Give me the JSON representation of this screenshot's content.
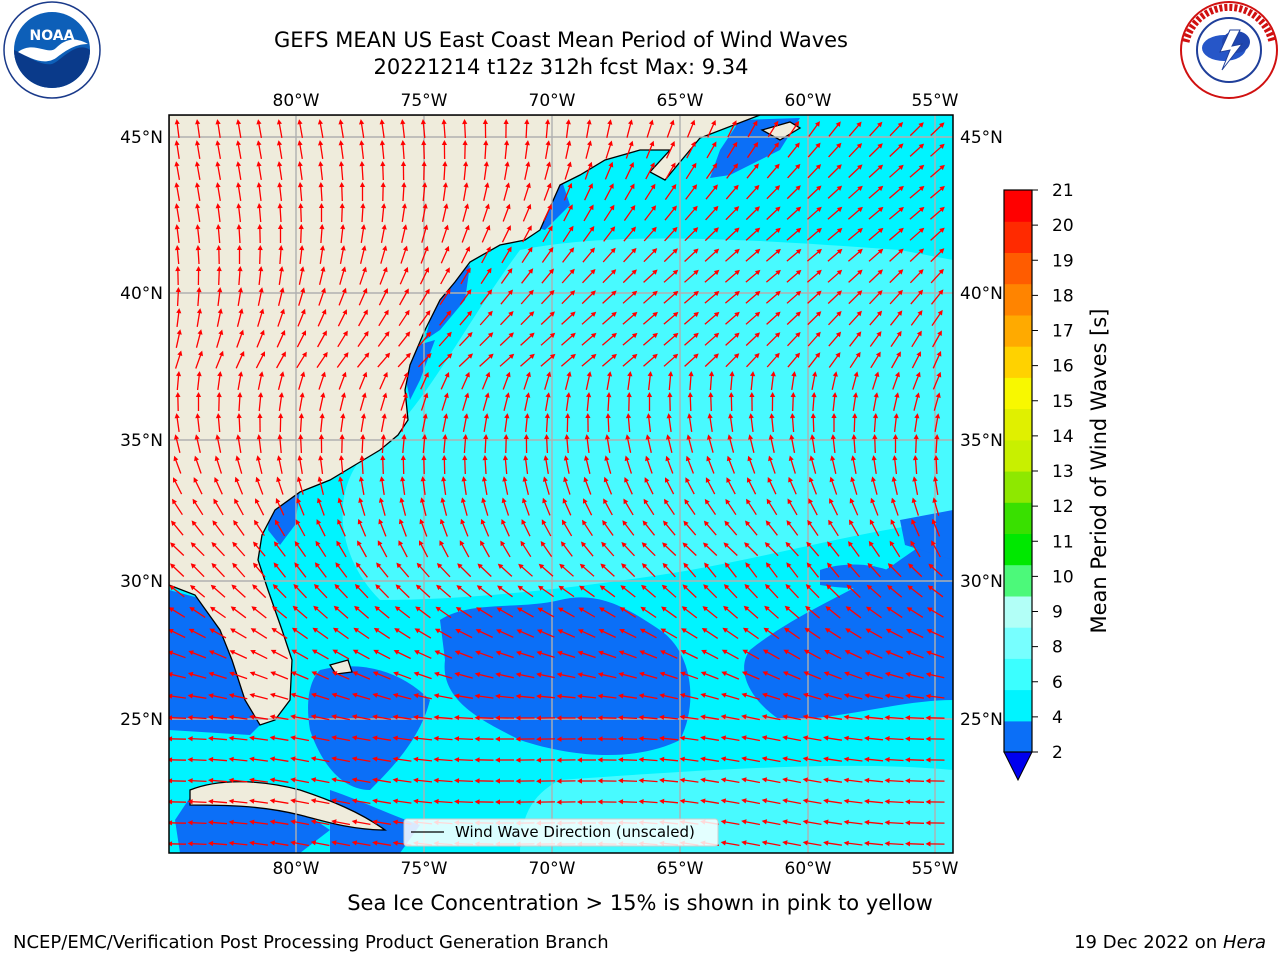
{
  "header": {
    "title_line1": "GEFS MEAN US East Coast Mean Period of Wind Waves",
    "title_line2": "20221214 t12z 312h fcst    Max: 9.34"
  },
  "logos": {
    "left": "noaa-logo",
    "right": "national-weather-service-logo"
  },
  "map": {
    "longitude_labels": [
      "80°W",
      "75°W",
      "70°W",
      "65°W",
      "60°W",
      "55°W"
    ],
    "latitude_labels": [
      "45°N",
      "40°N",
      "35°N",
      "30°N",
      "25°N"
    ],
    "legend_label": "Wind Wave Direction (unscaled)",
    "arrow_color": "#ff0000",
    "land_color": "#efecdc",
    "grid_color": "#b0b0b0"
  },
  "colorbar": {
    "label": "Mean Period of Wind Waves [s]",
    "tick_labels": [
      "2",
      "4",
      "6",
      "8",
      "9",
      "10",
      "11",
      "12",
      "13",
      "14",
      "15",
      "16",
      "17",
      "18",
      "19",
      "20",
      "21"
    ],
    "colors": [
      "#0b6ff7",
      "#00f4ff",
      "#3bffff",
      "#77ffff",
      "#b2fff7",
      "#4cf97a",
      "#00e800",
      "#39e000",
      "#8ee800",
      "#c8f000",
      "#e0f000",
      "#f8f800",
      "#ffd200",
      "#ffaa00",
      "#ff8400",
      "#ff5c00",
      "#ff2a00",
      "#ff0000"
    ],
    "under_color": "#0000ee"
  },
  "footer": {
    "subtitle": "Sea Ice Concentration > 15% is shown in pink to yellow",
    "credit": "NCEP/EMC/Verification Post Processing Product Generation Branch",
    "date": "19 Dec 2022 on ",
    "host": "Hera"
  }
}
